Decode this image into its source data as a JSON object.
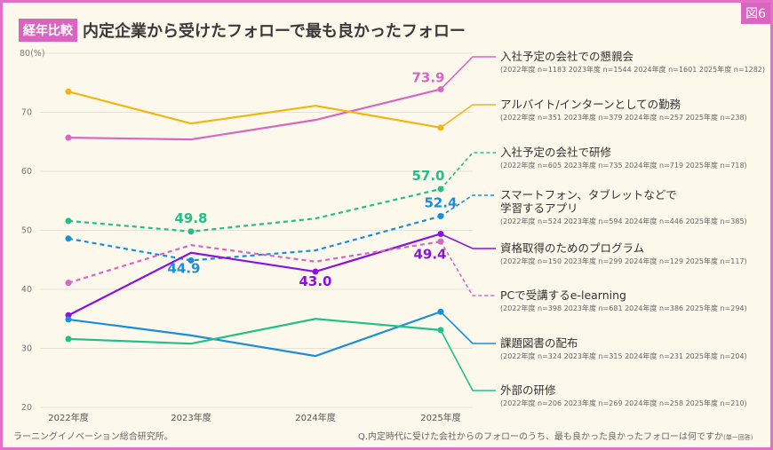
{
  "figure_label": "図6",
  "header": {
    "tag": "経年比較",
    "title": "内定企業から受けたフォローで最も良かったフォロー"
  },
  "footer": {
    "source": "ラーニングイノベーション総合研究所。",
    "question": "Q.内定時代に受けた会社からのフォローのうち、最も良かった良かったフォローは何ですか",
    "question_note": "(単一回答)"
  },
  "chart_data": {
    "type": "line",
    "title": "内定企業から受けたフォローで最も良かったフォロー",
    "x": [
      "2022年度",
      "2023年度",
      "2024年度",
      "2025年度"
    ],
    "y_unit_label": "80(%)",
    "yticks": [
      20,
      30,
      40,
      50,
      60,
      70,
      80
    ],
    "ylim": [
      20,
      80
    ],
    "grid": false,
    "legend_placement": "right",
    "series": [
      {
        "name": "入社予定の会社での懇親会",
        "n": "(2022年度 n=1183  2023年度 n=1544  2024年度 n=1601  2025年度 n=1282)",
        "color": "#d866c4",
        "dashed": false,
        "values": [
          65.7,
          65.4,
          68.7,
          73.9
        ],
        "labels": [
          null,
          null,
          null,
          "73.9"
        ]
      },
      {
        "name": "アルバイト/インターンとしての勤務",
        "n": "(2022年度 n=351  2023年度 n=379  2024年度 n=257  2025年度 n=238)",
        "color": "#f2b516",
        "dashed": false,
        "values": [
          73.5,
          68.1,
          71.1,
          67.4
        ],
        "labels": [
          null,
          null,
          null,
          null
        ]
      },
      {
        "name": "入社予定の会社で研修",
        "n": "(2022年度 n=605  2023年度 n=735  2024年度 n=719  2025年度 n=718)",
        "color": "#22bf8a",
        "dashed": true,
        "values": [
          51.6,
          49.8,
          52.0,
          57.0
        ],
        "labels": [
          null,
          "49.8",
          null,
          "57.0"
        ]
      },
      {
        "name": "スマートフォン、タブレットなどで",
        "name2": "学習するアプリ",
        "n": "(2022年度 n=524  2023年度 n=594  2024年度 n=446  2025年度 n=385)",
        "color": "#1a8fd8",
        "dashed": true,
        "values": [
          48.6,
          44.9,
          46.6,
          52.4
        ],
        "labels": [
          null,
          "44.9",
          null,
          "52.4"
        ]
      },
      {
        "name": "資格取得のためのプログラム",
        "n": "(2022年度 n=150  2023年度 n=299  2024年度 n=129  2025年度 n=117)",
        "color": "#8a12e0",
        "dashed": false,
        "values": [
          35.6,
          46.2,
          43.0,
          49.4
        ],
        "labels": [
          null,
          null,
          "43.0",
          "49.4"
        ]
      },
      {
        "name": "PCで受講するe-learning",
        "n": "(2022年度 n=398  2023年度 n=681  2024年度 n=386  2025年度 n=294)",
        "color": "#d866c4",
        "dashed": true,
        "values": [
          41.1,
          47.5,
          44.7,
          48.1
        ],
        "labels": [
          null,
          null,
          null,
          null
        ]
      },
      {
        "name": "課題図書の配布",
        "n": "(2022年度 n=324  2023年度 n=315  2024年度 n=231  2025年度 n=204)",
        "color": "#1a8fd8",
        "dashed": false,
        "values": [
          34.9,
          32.2,
          28.7,
          36.2
        ],
        "labels": [
          null,
          null,
          null,
          null
        ]
      },
      {
        "name": "外部の研修",
        "n": "(2022年度 n=206  2023年度 n=269  2024年度 n=258  2025年度 n=210)",
        "color": "#22bf8a",
        "dashed": false,
        "values": [
          31.6,
          30.8,
          35.0,
          33.1
        ],
        "labels": [
          null,
          null,
          null,
          null
        ]
      }
    ]
  }
}
